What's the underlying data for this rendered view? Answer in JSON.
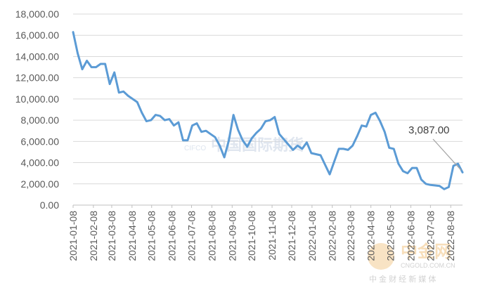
{
  "chart_data": {
    "type": "line",
    "title": "",
    "xlabel": "",
    "ylabel": "",
    "ylim": [
      0,
      18000
    ],
    "y_ticks": [
      "0.00",
      "2,000.00",
      "4,000.00",
      "6,000.00",
      "8,000.00",
      "10,000.00",
      "12,000.00",
      "14,000.00",
      "16,000.00",
      "18,000.00"
    ],
    "x_ticks": [
      "2021-01-08",
      "2021-02-08",
      "2021-03-08",
      "2021-04-08",
      "2021-05-08",
      "2021-06-08",
      "2021-07-08",
      "2021-08-08",
      "2021-09-08",
      "2021-10-08",
      "2021-11-08",
      "2021-12-08",
      "2022-01-08",
      "2022-02-08",
      "2022-03-08",
      "2022-04-08",
      "2022-05-08",
      "2022-06-08",
      "2022-07-08",
      "2022-08-08"
    ],
    "grid": "horizontal",
    "legend": "none",
    "line_color": "#5b9bd5",
    "series": [
      {
        "x": [
          "2021-01-08",
          "2021-01-15",
          "2021-01-22",
          "2021-01-29",
          "2021-02-05",
          "2021-02-12",
          "2021-02-19",
          "2021-02-26",
          "2021-03-05",
          "2021-03-12",
          "2021-03-19",
          "2021-03-26",
          "2021-04-02",
          "2021-04-09",
          "2021-04-16",
          "2021-04-23",
          "2021-04-30",
          "2021-05-07",
          "2021-05-14",
          "2021-05-21",
          "2021-05-28",
          "2021-06-04",
          "2021-06-11",
          "2021-06-18",
          "2021-06-25",
          "2021-07-02",
          "2021-07-09",
          "2021-07-16",
          "2021-07-23",
          "2021-07-30",
          "2021-08-06",
          "2021-08-13",
          "2021-08-20",
          "2021-08-27",
          "2021-09-03",
          "2021-09-10",
          "2021-09-17",
          "2021-09-24",
          "2021-10-01",
          "2021-10-08",
          "2021-10-15",
          "2021-10-22",
          "2021-10-29",
          "2021-11-05",
          "2021-11-12",
          "2021-11-19",
          "2021-11-26",
          "2021-12-03",
          "2021-12-10",
          "2021-12-17",
          "2021-12-24",
          "2021-12-31",
          "2022-01-07",
          "2022-01-14",
          "2022-01-21",
          "2022-01-28",
          "2022-02-04",
          "2022-02-11",
          "2022-02-18",
          "2022-02-25",
          "2022-03-04",
          "2022-03-11",
          "2022-03-18",
          "2022-03-25",
          "2022-04-01",
          "2022-04-08",
          "2022-04-15",
          "2022-04-22",
          "2022-04-29",
          "2022-05-06",
          "2022-05-13",
          "2022-05-20",
          "2022-05-27",
          "2022-06-03",
          "2022-06-10",
          "2022-06-17",
          "2022-06-24",
          "2022-07-01",
          "2022-07-08",
          "2022-07-15",
          "2022-07-22",
          "2022-07-29",
          "2022-08-05",
          "2022-08-12",
          "2022-08-19",
          "2022-08-26"
        ],
        "values": [
          16300,
          14300,
          12800,
          13600,
          13000,
          13000,
          13300,
          13300,
          11400,
          12500,
          10600,
          10700,
          10300,
          10000,
          9700,
          8700,
          7900,
          8000,
          8500,
          8400,
          8000,
          8100,
          7500,
          7800,
          6100,
          6100,
          7500,
          7700,
          6900,
          7000,
          6700,
          6400,
          5600,
          4500,
          6100,
          8500,
          7100,
          6100,
          5500,
          6300,
          6800,
          7200,
          7900,
          8000,
          8300,
          6700,
          6200,
          5700,
          5200,
          5600,
          5300,
          5900,
          4900,
          4800,
          4700,
          3800,
          2900,
          4100,
          5300,
          5300,
          5200,
          5600,
          6500,
          7500,
          7400,
          8500,
          8700,
          7900,
          6900,
          5400,
          5300,
          3900,
          3200,
          3000,
          3500,
          3500,
          2400,
          2000,
          1900,
          1850,
          1800,
          1500,
          1700,
          3700,
          3900,
          3087
        ]
      }
    ],
    "annotation": {
      "label": "3,087.00"
    }
  },
  "watermarks": {
    "cifco_cn": "中国国际期货",
    "cifco_en": "CIFCO",
    "cngold_title": "中金网",
    "cngold_url": "CNGOLD.COM.CN",
    "cngold_sub": "中 金 财 经 新 媒 体"
  }
}
